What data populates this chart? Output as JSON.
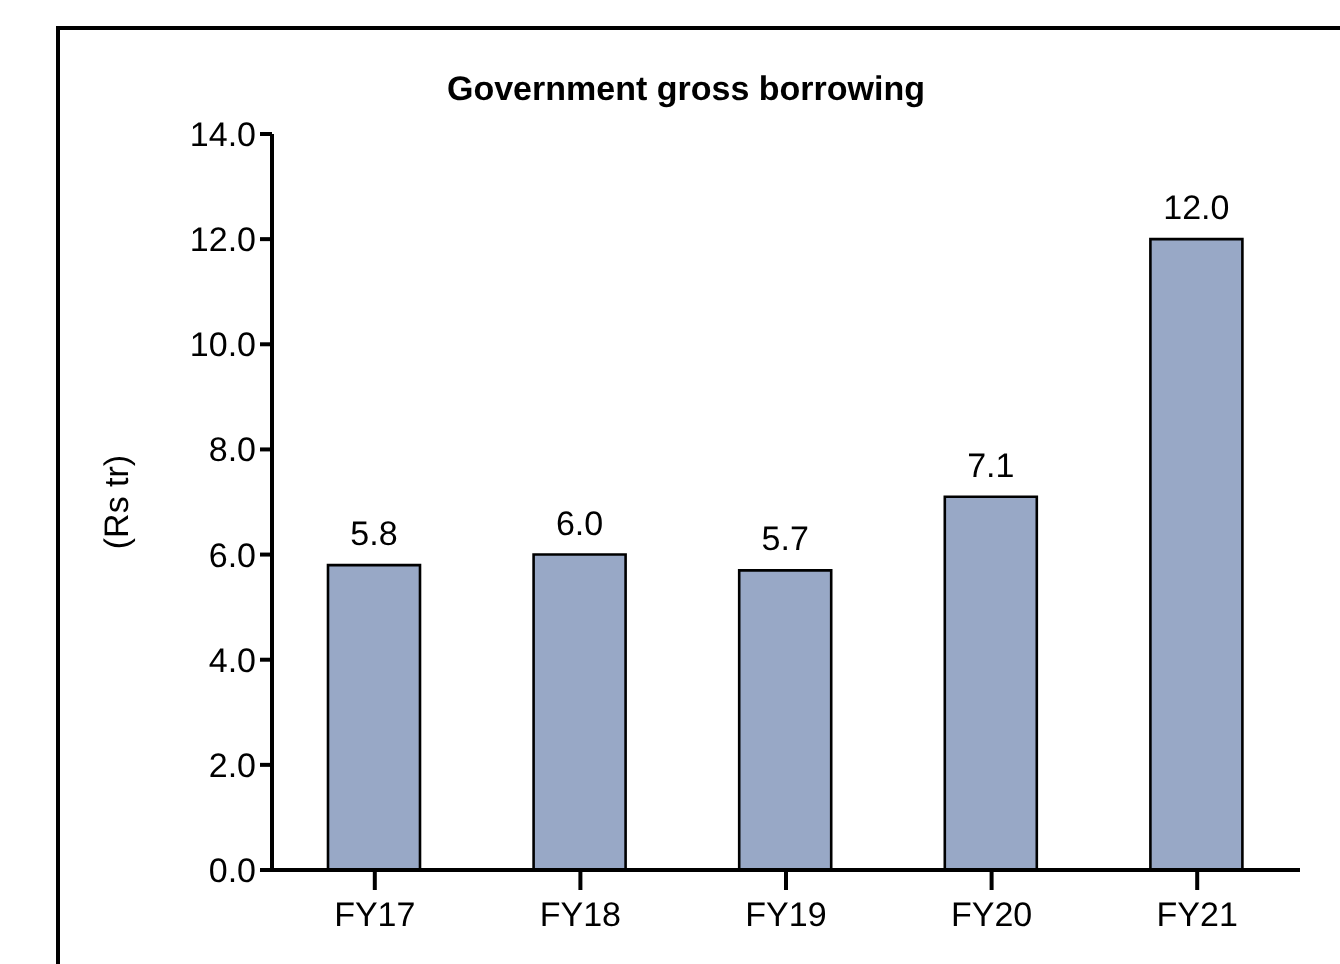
{
  "chart_data": {
    "type": "bar",
    "title": "Government gross borrowing",
    "ylabel": "(Rs tr)",
    "categories": [
      "FY17",
      "FY18",
      "FY19",
      "FY20",
      "FY21"
    ],
    "values": [
      5.8,
      6.0,
      5.7,
      7.1,
      12.0
    ],
    "color": "#98a8c6",
    "value_labels": [
      "5.8",
      "6.0",
      "5.7",
      "7.1",
      "12.0"
    ],
    "ylim": [
      0,
      14
    ],
    "yticks": [
      {
        "value": 0,
        "label": "0.0"
      },
      {
        "value": 2,
        "label": "2.0"
      },
      {
        "value": 4,
        "label": "4.0"
      },
      {
        "value": 6,
        "label": "6.0"
      },
      {
        "value": 8,
        "label": "8.0"
      },
      {
        "value": 10,
        "label": "10.0"
      },
      {
        "value": 12,
        "label": "12.0"
      },
      {
        "value": 14,
        "label": "14.0"
      }
    ],
    "grid": false
  }
}
